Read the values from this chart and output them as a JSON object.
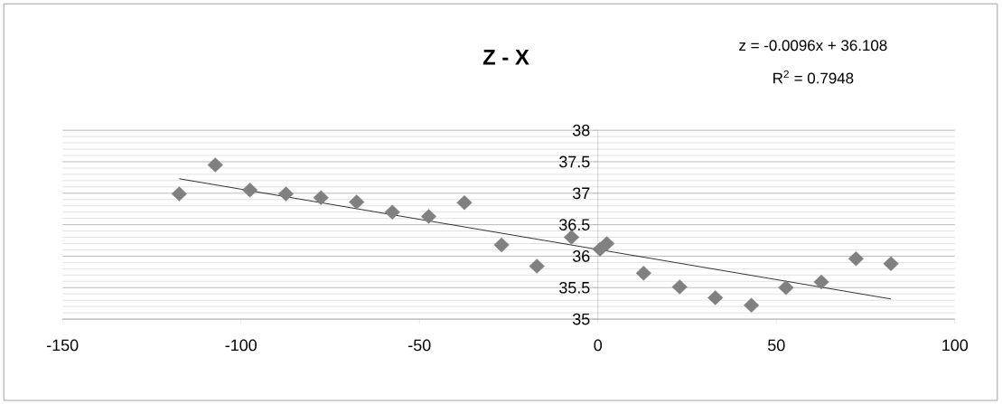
{
  "chart_data": {
    "type": "scatter",
    "title": "Z - X",
    "annotations": [
      "z = -0.0096x + 36.108",
      "R$^{2}$ = 0.7948"
    ],
    "series": [
      {
        "color": "#808080",
        "marker": "diamond",
        "x": [
          -117.3,
          -107.2,
          -97.5,
          -87.4,
          -77.6,
          -67.6,
          -57.6,
          -47.4,
          -37.4,
          -27.0,
          -17.1,
          -7.4,
          0.6,
          2.5,
          12.8,
          22.9,
          32.9,
          43.0,
          52.7,
          62.6,
          72.3,
          82.1
        ],
        "values": [
          36.99,
          37.45,
          37.05,
          36.99,
          36.93,
          36.86,
          36.7,
          36.63,
          36.85,
          36.18,
          35.84,
          36.3,
          36.11,
          36.2,
          35.73,
          35.51,
          35.34,
          35.22,
          35.5,
          35.59,
          35.96,
          35.88
        ]
      },
      {
        "type": "line",
        "color": "#000000",
        "marker": "none",
        "x": [
          -117.3,
          82.1
        ],
        "values": [
          37.23,
          35.32
        ]
      }
    ],
    "xlim": [
      -150,
      100
    ],
    "xticks": [
      -150,
      -100,
      -50,
      0,
      50,
      100
    ],
    "ylim": [
      35,
      38
    ],
    "yticks": [
      35,
      35.5,
      36,
      36.5,
      37,
      37.5,
      38
    ],
    "grid": "y"
  }
}
